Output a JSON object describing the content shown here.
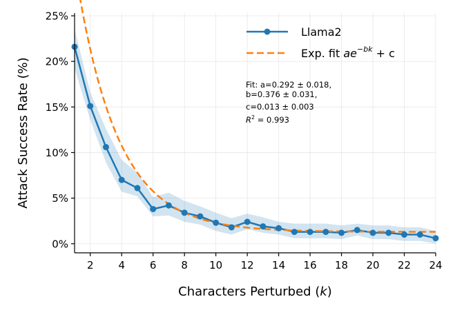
{
  "chart_data": {
    "type": "line",
    "title": "",
    "xlabel": "Characters Perturbed (",
    "xlabel_var": "k",
    "xlabel_end": ")",
    "ylabel": "Attack Success Rate (%)",
    "xlim": [
      1,
      24
    ],
    "ylim": [
      -1,
      25.3
    ],
    "xticks": [
      2,
      4,
      6,
      8,
      10,
      12,
      14,
      16,
      18,
      20,
      22,
      24
    ],
    "yticks": [
      0,
      5,
      10,
      15,
      20,
      25
    ],
    "ytick_labels": [
      "0%",
      "5%",
      "10%",
      "15%",
      "20%",
      "25%"
    ],
    "grid": true,
    "legend_position": "top-right",
    "series": [
      {
        "name": "Llama2",
        "style": "solid-with-markers",
        "color": "#1f77b4",
        "x": [
          1,
          2,
          3,
          4,
          5,
          6,
          7,
          8,
          9,
          10,
          11,
          12,
          13,
          14,
          15,
          16,
          17,
          18,
          19,
          20,
          21,
          22,
          23,
          24
        ],
        "y": [
          21.6,
          15.1,
          10.6,
          7.0,
          6.1,
          3.8,
          4.2,
          3.4,
          3.0,
          2.3,
          1.8,
          2.4,
          1.9,
          1.7,
          1.3,
          1.3,
          1.3,
          1.2,
          1.5,
          1.2,
          1.2,
          1.0,
          1.0,
          0.6
        ],
        "band_upper": [
          23.6,
          16.6,
          12.6,
          9.2,
          7.8,
          5.1,
          5.6,
          4.7,
          4.1,
          3.4,
          2.8,
          3.3,
          2.9,
          2.4,
          2.2,
          2.2,
          2.2,
          2.0,
          2.2,
          2.0,
          2.0,
          1.8,
          1.8,
          1.4
        ],
        "band_lower": [
          19.2,
          13.6,
          8.9,
          5.7,
          5.2,
          3.0,
          3.1,
          2.4,
          2.1,
          1.4,
          1.0,
          1.6,
          1.2,
          1.0,
          0.6,
          0.6,
          0.6,
          0.5,
          0.9,
          0.5,
          0.5,
          0.3,
          0.3,
          0.0
        ],
        "band_color": "#1f77b4"
      },
      {
        "name": "Exp. fit ",
        "name_formula": "ae",
        "name_exponent": "−bk",
        "name_tail": " + c",
        "style": "dashed",
        "color": "#ff7f0e",
        "function": "a*exp(-b*(k-1)) + c",
        "params": {
          "a": 0.292,
          "b": 0.376,
          "c": 0.013
        }
      }
    ],
    "annotation": {
      "line1": "Fit: a=0.292 ± 0.018,",
      "line2": "b=0.376 ± 0.031,",
      "line3": "c=0.013 ± 0.003",
      "r2_label": "R",
      "r2_sup": "2",
      "r2_value": " = 0.993"
    }
  }
}
